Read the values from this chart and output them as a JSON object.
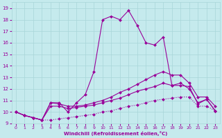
{
  "xlabel": "Windchill (Refroidissement éolien,°C)",
  "xlim": [
    -0.5,
    23.5
  ],
  "ylim": [
    9,
    19.5
  ],
  "xticks": [
    0,
    1,
    2,
    3,
    4,
    5,
    6,
    7,
    8,
    9,
    10,
    11,
    12,
    13,
    14,
    15,
    16,
    17,
    18,
    19,
    20,
    21,
    22,
    23
  ],
  "yticks": [
    9,
    10,
    11,
    12,
    13,
    14,
    15,
    16,
    17,
    18,
    19
  ],
  "background_color": "#c5eaed",
  "grid_color": "#a8d5d8",
  "line_color": "#990099",
  "line1_x": [
    0,
    1,
    2,
    3,
    4,
    5,
    6,
    7,
    8,
    9,
    10,
    11,
    12,
    13,
    14,
    15,
    16,
    17,
    18,
    19,
    20,
    21,
    22,
    23
  ],
  "line1_y": [
    10.0,
    9.7,
    9.5,
    9.3,
    9.3,
    9.4,
    9.5,
    9.6,
    9.7,
    9.8,
    10.0,
    10.1,
    10.3,
    10.5,
    10.6,
    10.8,
    11.0,
    11.1,
    11.2,
    11.3,
    11.3,
    10.5,
    10.5,
    10.1
  ],
  "line2_x": [
    0,
    1,
    2,
    3,
    4,
    5,
    6,
    7,
    8,
    9,
    10,
    11,
    12,
    13,
    14,
    15,
    16,
    17,
    18,
    19,
    20,
    21,
    22,
    23
  ],
  "line2_y": [
    10.0,
    9.7,
    9.5,
    9.3,
    10.5,
    10.5,
    10.3,
    10.4,
    10.5,
    10.6,
    10.8,
    11.0,
    11.2,
    11.5,
    11.8,
    12.0,
    12.2,
    12.5,
    12.3,
    12.5,
    12.0,
    10.8,
    11.1,
    10.1
  ],
  "line3_x": [
    0,
    1,
    2,
    3,
    4,
    5,
    6,
    7,
    8,
    9,
    10,
    11,
    12,
    13,
    14,
    15,
    16,
    17,
    18,
    19,
    20,
    21,
    22,
    23
  ],
  "line3_y": [
    10.0,
    9.7,
    9.5,
    9.3,
    10.8,
    10.7,
    10.5,
    10.5,
    10.6,
    10.8,
    11.0,
    11.3,
    11.7,
    12.0,
    12.4,
    12.8,
    13.2,
    13.5,
    13.2,
    13.2,
    12.5,
    11.3,
    11.3,
    10.5
  ],
  "line4_x": [
    0,
    1,
    2,
    3,
    4,
    5,
    6,
    7,
    8,
    9,
    10,
    11,
    12,
    13,
    14,
    15,
    16,
    17,
    18,
    19,
    20,
    21,
    22,
    23
  ],
  "line4_y": [
    10.0,
    9.7,
    9.5,
    9.3,
    10.8,
    10.8,
    10.0,
    10.8,
    11.5,
    13.5,
    18.0,
    18.3,
    18.0,
    18.8,
    17.5,
    16.0,
    15.8,
    16.5,
    12.3,
    12.3,
    12.2,
    10.7,
    11.1,
    10.1
  ],
  "marker": "D",
  "markersize": 2.0,
  "linewidth": 0.8
}
